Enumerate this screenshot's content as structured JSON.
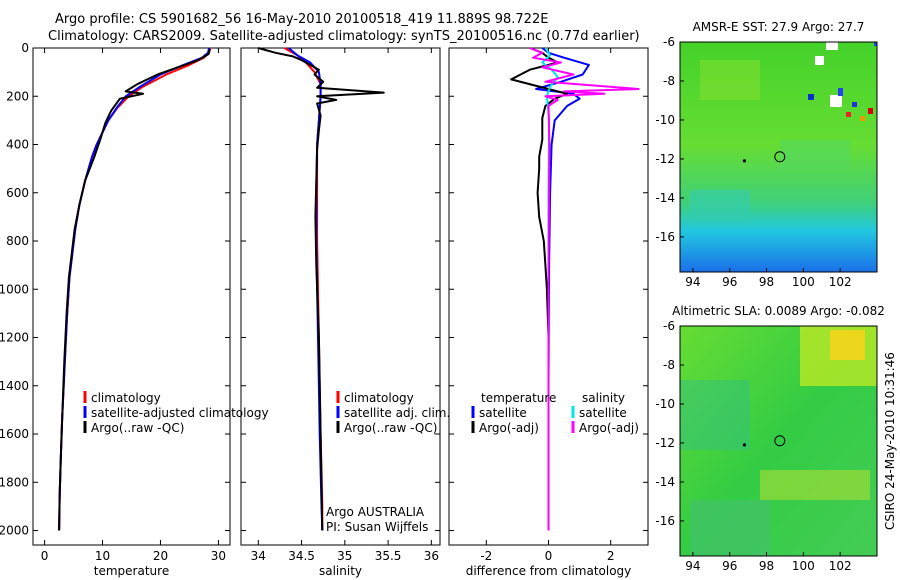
{
  "header": {
    "line1": "Argo profile: CS 5901682_56 16-May-2010 20100518_419 11.889S 98.722E",
    "line2": "Climatology: CARS2009. Satellite-adjusted climatology: synTS_20100516.nc (0.77d earlier)"
  },
  "side_text": "CSIRO 24-May-2010 10:31:46",
  "colors": {
    "climatology": "#ff0000",
    "satellite": "#0000ff",
    "argo": "#000000",
    "sal_satellite": "#00e5e5",
    "sal_argo": "#ff00ff"
  },
  "chart_data": [
    {
      "type": "line",
      "id": "temp",
      "xlabel": "temperature",
      "xlim": [
        -2,
        32
      ],
      "ylim": [
        2060,
        0
      ],
      "xticks": [
        0,
        10,
        20,
        30
      ],
      "xtick_labels": [
        "0",
        "10",
        "20",
        "30"
      ],
      "yticks": [
        0,
        200,
        400,
        600,
        800,
        1000,
        1200,
        1400,
        1600,
        1800,
        2000
      ],
      "ytick_labels": [
        "0",
        "200",
        "400",
        "600",
        "800",
        "1000",
        "1200",
        "1400",
        "1600",
        "1800",
        "2000"
      ],
      "legend": [
        "climatology",
        "satellite-adjusted climatology",
        "Argo(..raw -QC)"
      ],
      "series": [
        {
          "name": "climatology",
          "color": "#ff0000",
          "x": [
            28.6,
            28.4,
            27.5,
            25,
            21,
            17,
            14.5,
            12.5,
            11,
            10,
            9,
            8.2,
            7,
            6,
            5.3,
            4.8,
            4.3,
            3.9,
            3.6,
            3.3,
            3.0,
            2.8,
            2.6,
            2.5
          ],
          "y": [
            0,
            20,
            40,
            70,
            110,
            160,
            200,
            250,
            300,
            350,
            400,
            450,
            550,
            650,
            750,
            850,
            950,
            1100,
            1250,
            1400,
            1550,
            1700,
            1850,
            2000
          ]
        },
        {
          "name": "satellite-adjusted climatology",
          "color": "#0000ff",
          "x": [
            28.4,
            28.2,
            27.2,
            24,
            20,
            16.5,
            14,
            12.4,
            11,
            10,
            9,
            8.2,
            7,
            6,
            5.3,
            4.8,
            4.3,
            3.9,
            3.6,
            3.3,
            3.0,
            2.8,
            2.6,
            2.5
          ],
          "y": [
            0,
            20,
            40,
            70,
            110,
            160,
            200,
            250,
            300,
            350,
            400,
            450,
            550,
            650,
            750,
            850,
            950,
            1100,
            1250,
            1400,
            1550,
            1700,
            1850,
            2000
          ]
        },
        {
          "name": "Argo(..raw -QC)",
          "color": "#000000",
          "x": [
            28.5,
            28.3,
            26.5,
            23,
            19.5,
            16,
            14,
            17,
            13,
            11.5,
            10.5,
            9.6,
            8.6,
            7,
            6,
            5.2,
            4.7,
            4.2,
            3.8,
            3.4,
            3.1,
            2.8,
            2.6,
            2.5
          ],
          "y": [
            5,
            25,
            50,
            80,
            110,
            150,
            180,
            190,
            210,
            260,
            310,
            380,
            450,
            550,
            650,
            750,
            850,
            950,
            1100,
            1300,
            1500,
            1700,
            1850,
            2000
          ]
        }
      ]
    },
    {
      "type": "line",
      "id": "sal",
      "xlabel": "salinity",
      "xlim": [
        33.8,
        36.1
      ],
      "ylim": [
        2060,
        0
      ],
      "xticks": [
        34,
        34.5,
        35,
        35.5,
        36
      ],
      "xtick_labels": [
        "34",
        "34.5",
        "35",
        "35.5",
        "36"
      ],
      "legend": [
        "climatology",
        "satellite adj. clim.",
        "Argo(..raw -QC)"
      ],
      "annotations": [
        "Argo AUSTRALIA",
        "PI: Susan Wijffels"
      ],
      "series": [
        {
          "name": "climatology",
          "color": "#ff0000",
          "x": [
            34.3,
            34.45,
            34.55,
            34.65,
            34.72,
            34.72,
            34.7,
            34.68,
            34.68,
            34.68,
            34.69,
            34.7,
            34.71,
            34.72,
            34.73,
            34.74,
            34.74
          ],
          "y": [
            0,
            30,
            60,
            100,
            150,
            200,
            300,
            400,
            600,
            800,
            1000,
            1200,
            1400,
            1600,
            1750,
            1900,
            2000
          ]
        },
        {
          "name": "satellite adj. clim.",
          "color": "#0000ff",
          "x": [
            34.35,
            34.45,
            34.6,
            34.7,
            34.72,
            34.72,
            34.7,
            34.68,
            34.67,
            34.67,
            34.68,
            34.69,
            34.7,
            34.71,
            34.72,
            34.73,
            34.74
          ],
          "y": [
            0,
            30,
            60,
            100,
            150,
            200,
            300,
            400,
            600,
            800,
            1000,
            1200,
            1400,
            1600,
            1750,
            1900,
            2000
          ]
        },
        {
          "name": "Argo(..raw -QC)",
          "color": "#000000",
          "x": [
            34.0,
            34.2,
            34.4,
            34.5,
            34.6,
            34.7,
            34.65,
            34.75,
            34.68,
            35.45,
            34.68,
            34.9,
            34.68,
            34.72,
            34.7,
            34.68,
            34.67,
            34.66,
            34.67,
            34.7,
            34.72,
            34.74
          ],
          "y": [
            0,
            20,
            35,
            50,
            70,
            90,
            110,
            140,
            165,
            185,
            200,
            215,
            230,
            280,
            340,
            420,
            550,
            700,
            900,
            1200,
            1600,
            2000
          ]
        }
      ]
    },
    {
      "type": "line",
      "id": "diff",
      "xlabel": "difference from climatology",
      "xlim": [
        -3.2,
        3.2
      ],
      "ylim": [
        2060,
        0
      ],
      "xticks": [
        -2,
        0,
        2
      ],
      "xtick_labels": [
        "-2",
        "0",
        "2"
      ],
      "legend_left": [
        "temperature",
        "satellite",
        "Argo(-adj)"
      ],
      "legend_right": [
        "salinity",
        "satellite",
        "Argo(-adj)"
      ],
      "series": [
        {
          "name": "temperature satellite",
          "color": "#0000ff",
          "x": [
            -0.2,
            0,
            0.5,
            1.3,
            1.1,
            0.4,
            -0.4,
            0.8,
            1.0,
            0.6,
            0.2,
            0.1,
            0.05,
            0.02,
            0,
            0
          ],
          "y": [
            0,
            20,
            40,
            70,
            110,
            140,
            170,
            190,
            210,
            240,
            300,
            400,
            600,
            900,
            1400,
            2000
          ]
        },
        {
          "name": "temperature Argo(-adj)",
          "color": "#000000",
          "x": [
            -0.6,
            -0.2,
            0,
            0.3,
            -0.6,
            -1.2,
            -0.3,
            0.6,
            0.2,
            -0.1,
            -0.2,
            -0.2,
            -0.3,
            -0.3,
            -0.35,
            -0.3,
            -0.15,
            -0.1,
            -0.05,
            0,
            0,
            0
          ],
          "y": [
            0,
            20,
            40,
            60,
            90,
            130,
            160,
            190,
            210,
            240,
            290,
            380,
            450,
            500,
            600,
            700,
            800,
            900,
            1000,
            1200,
            1600,
            2000
          ]
        },
        {
          "name": "salinity satellite",
          "color": "#00e5e5",
          "x": [
            -0.1,
            0.05,
            -0.2,
            0.1,
            0.3,
            0.05,
            -0.05,
            0.02,
            0,
            0
          ],
          "y": [
            0,
            30,
            60,
            90,
            120,
            160,
            200,
            300,
            600,
            2000
          ]
        },
        {
          "name": "salinity Argo(-adj)",
          "color": "#ff00ff",
          "x": [
            -0.6,
            -0.2,
            -0.5,
            0.4,
            -0.2,
            0.8,
            -0.1,
            2.9,
            0.5,
            1.8,
            -0.1,
            0.3,
            0,
            0.03,
            0,
            0
          ],
          "y": [
            0,
            20,
            40,
            60,
            80,
            110,
            140,
            170,
            180,
            190,
            200,
            215,
            240,
            400,
            900,
            2000
          ]
        }
      ]
    },
    {
      "type": "heatmap",
      "id": "sst",
      "title": "AMSR-E SST: 27.9 Argo: 27.7",
      "xlim": [
        93.3,
        104
      ],
      "ylim": [
        -17.8,
        -6
      ],
      "xticks": [
        94,
        96,
        98,
        100,
        102
      ],
      "xtick_labels": [
        "94",
        "96",
        "98",
        "100",
        "102"
      ],
      "yticks": [
        -6,
        -8,
        -10,
        -12,
        -14,
        -16
      ],
      "ytick_labels": [
        "-6",
        "-8",
        "-10",
        "-12",
        "-14",
        "-16"
      ],
      "argo_position": [
        98.722,
        -11.889
      ],
      "prev_position": [
        96.8,
        -12.1
      ]
    },
    {
      "type": "heatmap",
      "id": "sla",
      "title": "Altimetric SLA: 0.0089 Argo: -0.082",
      "xlim": [
        93.3,
        104
      ],
      "ylim": [
        -17.8,
        -6
      ],
      "xticks": [
        94,
        96,
        98,
        100,
        102
      ],
      "xtick_labels": [
        "94",
        "96",
        "98",
        "100",
        "102"
      ],
      "yticks": [
        -6,
        -8,
        -10,
        -12,
        -14,
        -16
      ],
      "ytick_labels": [
        "-6",
        "-8",
        "-10",
        "-12",
        "-14",
        "-16"
      ],
      "argo_position": [
        98.722,
        -11.889
      ],
      "prev_position": [
        96.8,
        -12.1
      ]
    }
  ]
}
